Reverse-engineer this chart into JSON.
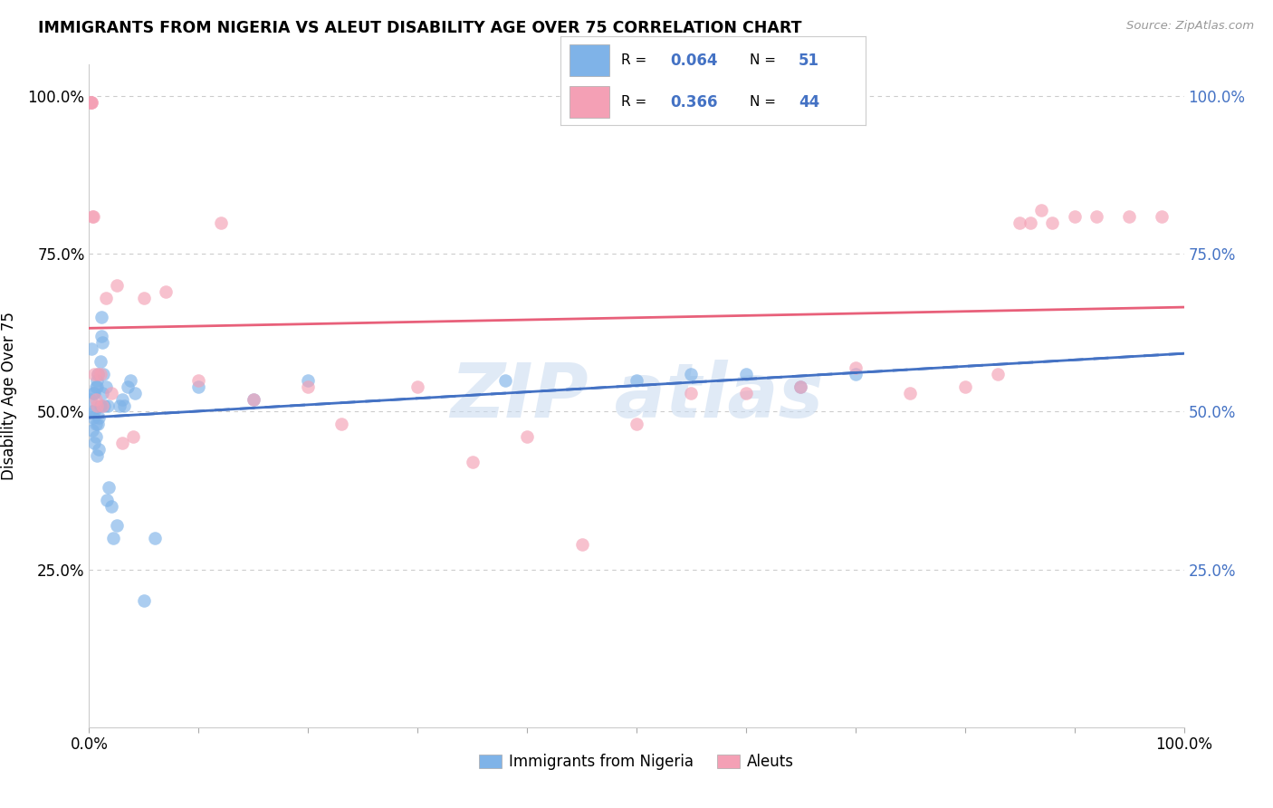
{
  "title": "IMMIGRANTS FROM NIGERIA VS ALEUT DISABILITY AGE OVER 75 CORRELATION CHART",
  "source": "Source: ZipAtlas.com",
  "ylabel": "Disability Age Over 75",
  "blue_color": "#7fb3e8",
  "pink_color": "#f4a0b5",
  "line_blue": "#4472c4",
  "line_pink": "#e8607a",
  "line_blue_dashed": "#8ab4e8",
  "tick_color_right": "#4472c4",
  "nigeria_x": [
    0.001,
    0.002,
    0.003,
    0.003,
    0.004,
    0.004,
    0.005,
    0.005,
    0.005,
    0.006,
    0.006,
    0.006,
    0.007,
    0.007,
    0.007,
    0.008,
    0.008,
    0.009,
    0.009,
    0.01,
    0.01,
    0.011,
    0.011,
    0.012,
    0.012,
    0.013,
    0.014,
    0.015,
    0.016,
    0.017,
    0.018,
    0.02,
    0.022,
    0.025,
    0.028,
    0.03,
    0.032,
    0.035,
    0.038,
    0.042,
    0.05,
    0.06,
    0.1,
    0.15,
    0.2,
    0.38,
    0.5,
    0.55,
    0.6,
    0.65,
    0.7
  ],
  "nigeria_y": [
    0.52,
    0.6,
    0.5,
    0.47,
    0.53,
    0.49,
    0.45,
    0.5,
    0.53,
    0.48,
    0.46,
    0.54,
    0.55,
    0.54,
    0.43,
    0.56,
    0.48,
    0.49,
    0.44,
    0.51,
    0.58,
    0.65,
    0.62,
    0.53,
    0.61,
    0.56,
    0.51,
    0.54,
    0.36,
    0.51,
    0.38,
    0.35,
    0.3,
    0.32,
    0.51,
    0.52,
    0.51,
    0.54,
    0.55,
    0.53,
    0.2,
    0.3,
    0.54,
    0.52,
    0.55,
    0.55,
    0.55,
    0.56,
    0.56,
    0.54,
    0.56
  ],
  "aleut_x": [
    0.001,
    0.001,
    0.002,
    0.002,
    0.003,
    0.004,
    0.005,
    0.006,
    0.007,
    0.008,
    0.01,
    0.012,
    0.015,
    0.02,
    0.025,
    0.03,
    0.04,
    0.05,
    0.07,
    0.1,
    0.12,
    0.15,
    0.2,
    0.23,
    0.3,
    0.35,
    0.4,
    0.45,
    0.5,
    0.55,
    0.6,
    0.65,
    0.7,
    0.75,
    0.8,
    0.83,
    0.85,
    0.86,
    0.87,
    0.88,
    0.9,
    0.92,
    0.95,
    0.98
  ],
  "aleut_y": [
    0.99,
    0.99,
    0.99,
    0.99,
    0.81,
    0.81,
    0.56,
    0.52,
    0.51,
    0.56,
    0.56,
    0.51,
    0.68,
    0.53,
    0.7,
    0.45,
    0.46,
    0.68,
    0.69,
    0.55,
    0.8,
    0.52,
    0.54,
    0.48,
    0.54,
    0.42,
    0.46,
    0.29,
    0.48,
    0.53,
    0.53,
    0.54,
    0.57,
    0.53,
    0.54,
    0.56,
    0.8,
    0.8,
    0.82,
    0.8,
    0.81,
    0.81,
    0.81,
    0.81
  ],
  "xlim": [
    0.0,
    1.0
  ],
  "ylim": [
    0.0,
    1.05
  ],
  "yticks": [
    0.25,
    0.5,
    0.75,
    1.0
  ],
  "ytick_labels": [
    "25.0%",
    "50.0%",
    "75.0%",
    "100.0%"
  ],
  "xtick_positions": [
    0.0,
    0.1,
    0.2,
    0.3,
    0.4,
    0.5,
    0.6,
    0.7,
    0.8,
    0.9,
    1.0
  ],
  "watermark_text": "ZIP atlas",
  "legend_r1": "0.064",
  "legend_n1": "51",
  "legend_r2": "0.366",
  "legend_n2": "44"
}
